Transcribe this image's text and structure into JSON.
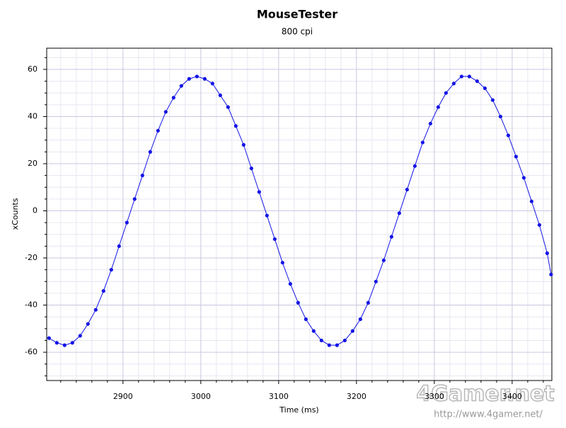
{
  "chart_data": {
    "type": "line",
    "title": "MouseTester",
    "subtitle": "800 cpi",
    "x_label": "Time (ms)",
    "y_label": "xCounts",
    "x": [
      2805,
      2815,
      2825,
      2835,
      2845,
      2855,
      2865,
      2875,
      2885,
      2895,
      2905,
      2915,
      2925,
      2935,
      2945,
      2955,
      2965,
      2975,
      2985,
      2995,
      3005,
      3015,
      3025,
      3035,
      3045,
      3055,
      3065,
      3075,
      3085,
      3095,
      3105,
      3115,
      3125,
      3135,
      3145,
      3155,
      3165,
      3175,
      3185,
      3195,
      3205,
      3215,
      3225,
      3235,
      3245,
      3255,
      3265,
      3275,
      3285,
      3295,
      3305,
      3315,
      3325,
      3335,
      3345,
      3355,
      3365,
      3375,
      3385,
      3395,
      3405,
      3415,
      3425,
      3435,
      3445,
      3450
    ],
    "values": [
      -54,
      -56,
      -57,
      -56,
      -53,
      -48,
      -42,
      -34,
      -25,
      -15,
      -5,
      5,
      15,
      25,
      34,
      42,
      48,
      53,
      56,
      57,
      56,
      54,
      49,
      44,
      36,
      28,
      18,
      8,
      -2,
      -12,
      -22,
      -31,
      -39,
      -46,
      -51,
      -55,
      -57,
      -57,
      -55,
      -51,
      -46,
      -39,
      -30,
      -21,
      -11,
      -1,
      9,
      19,
      29,
      37,
      44,
      50,
      54,
      57,
      57,
      55,
      52,
      47,
      40,
      32,
      23,
      14,
      4,
      -6,
      -18,
      -27
    ],
    "color": "#1414e6",
    "xlim": [
      2802,
      3451
    ],
    "ylim": [
      -72,
      69
    ],
    "xticks": [
      2900,
      3000,
      3100,
      3200,
      3300,
      3400
    ],
    "yticks": [
      -60,
      -40,
      -20,
      0,
      20,
      40,
      60
    ],
    "minor_xticks": [
      2820,
      2840,
      2860,
      2880,
      2920,
      2940,
      2960,
      2980,
      3020,
      3040,
      3060,
      3080,
      3120,
      3140,
      3160,
      3180,
      3220,
      3240,
      3260,
      3280,
      3320,
      3340,
      3360,
      3380,
      3420,
      3440
    ],
    "minor_yticks": [
      -70,
      -65,
      -55,
      -50,
      -45,
      -35,
      -30,
      -25,
      -15,
      -10,
      -5,
      5,
      10,
      15,
      25,
      30,
      35,
      45,
      50,
      55,
      65
    ],
    "grid": true,
    "watermark": "4Gamer.net",
    "watermark_url": "http://www.4gamer.net/"
  }
}
